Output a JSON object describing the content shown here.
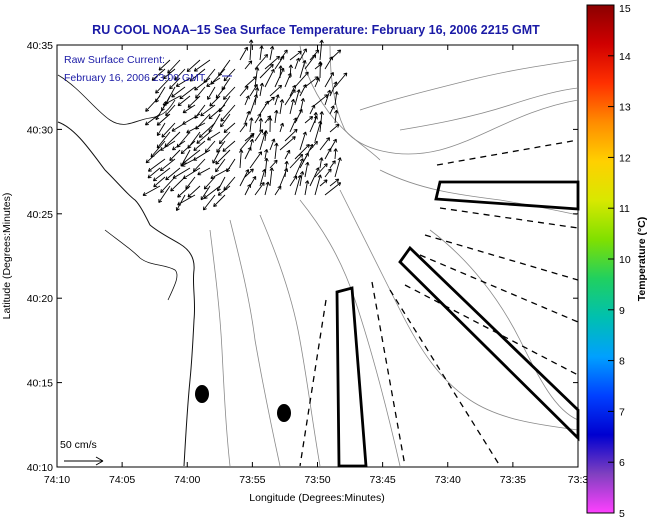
{
  "title": "RU COOL  NOAA–15  Sea Surface Temperature:  February 16, 2006 2215 GMT",
  "legend": {
    "line1": "Raw Surface Current:",
    "line2": "February 16, 2006 23:00 GMT"
  },
  "axes": {
    "x_label": "Longitude (Degrees:Minutes)",
    "y_label": "Latitude (Degrees:Minutes)",
    "x_ticks": [
      "74:10",
      "74:05",
      "74:00",
      "73:55",
      "73:50",
      "73:45",
      "73:40",
      "73:35",
      "73:3"
    ],
    "y_ticks": [
      "40:35",
      "40:30",
      "40:25",
      "40:20",
      "40:15",
      "40:10"
    ]
  },
  "scale": {
    "label": "50 cm/s"
  },
  "colorbar": {
    "label": "Temperature (°C)",
    "ticks": [
      "15",
      "14",
      "13",
      "12",
      "11",
      "10",
      "9",
      "8",
      "7",
      "6",
      "5"
    ],
    "stops": [
      "#8b0000",
      "#d00000",
      "#ff3000",
      "#ff8c00",
      "#ffd000",
      "#d8e800",
      "#80e000",
      "#20d060",
      "#00c0b0",
      "#00a0ff",
      "#0040ff",
      "#0000d0",
      "#8040c0",
      "#ff40ff"
    ]
  }
}
